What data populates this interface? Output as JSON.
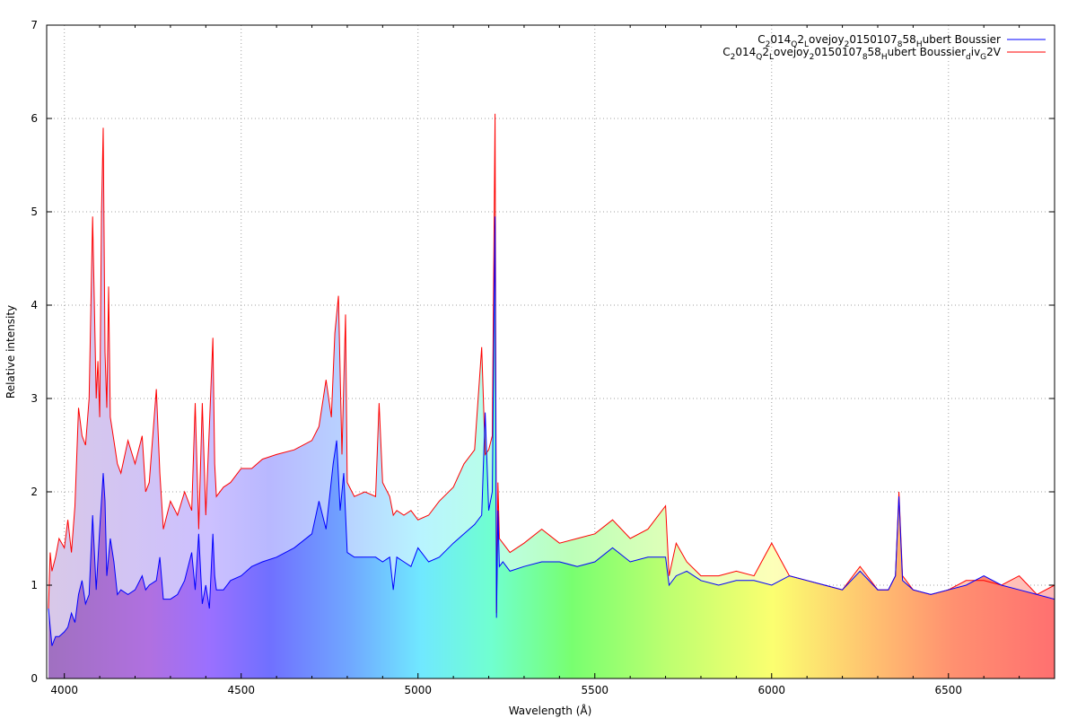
{
  "chart_data": {
    "type": "line",
    "title": "",
    "xlabel": "Wavelength (Å)",
    "ylabel": "Relative intensity",
    "xlim": [
      3950,
      6800
    ],
    "ylim": [
      0,
      7
    ],
    "x_ticks": [
      4000,
      4500,
      5000,
      5500,
      6000,
      6500
    ],
    "y_ticks": [
      0,
      1,
      2,
      3,
      4,
      5,
      6,
      7
    ],
    "grid": true,
    "legend_position": "top-right",
    "background": "spectrum-gradient",
    "series": [
      {
        "name": "C₂014Q₂Lovejoy₂0150107₈58Hubert Boussier",
        "legend_parts": [
          [
            "C",
            ""
          ],
          [
            "2",
            "sub"
          ],
          [
            "014",
            ""
          ],
          [
            "Q",
            "sub"
          ],
          [
            "2",
            ""
          ],
          [
            "L",
            "sub"
          ],
          [
            "ovejoy",
            ""
          ],
          [
            "2",
            "sub"
          ],
          [
            "0150107",
            ""
          ],
          [
            "8",
            "sub"
          ],
          [
            "58",
            ""
          ],
          [
            "H",
            "sub"
          ],
          [
            "ubert Boussier",
            ""
          ]
        ],
        "color": "#0000ff",
        "x": [
          3955,
          3965,
          3975,
          3985,
          4000,
          4010,
          4020,
          4030,
          4040,
          4050,
          4060,
          4070,
          4080,
          4090,
          4100,
          4110,
          4115,
          4120,
          4130,
          4140,
          4150,
          4160,
          4180,
          4200,
          4220,
          4230,
          4240,
          4260,
          4270,
          4280,
          4300,
          4320,
          4340,
          4360,
          4370,
          4380,
          4390,
          4400,
          4410,
          4420,
          4425,
          4430,
          4450,
          4470,
          4500,
          4530,
          4560,
          4600,
          4650,
          4700,
          4720,
          4740,
          4760,
          4770,
          4780,
          4790,
          4800,
          4820,
          4850,
          4880,
          4900,
          4920,
          4930,
          4940,
          4960,
          4980,
          5000,
          5030,
          5060,
          5100,
          5130,
          5160,
          5180,
          5190,
          5200,
          5210,
          5218,
          5222,
          5226,
          5230,
          5240,
          5260,
          5300,
          5350,
          5400,
          5450,
          5500,
          5550,
          5600,
          5650,
          5700,
          5710,
          5730,
          5760,
          5800,
          5850,
          5900,
          5950,
          6000,
          6050,
          6100,
          6150,
          6200,
          6250,
          6300,
          6330,
          6350,
          6360,
          6370,
          6400,
          6450,
          6500,
          6550,
          6600,
          6650,
          6700,
          6750,
          6800
        ],
        "y": [
          0.75,
          0.35,
          0.45,
          0.45,
          0.5,
          0.55,
          0.7,
          0.6,
          0.9,
          1.05,
          0.8,
          0.9,
          1.75,
          0.95,
          1.6,
          2.2,
          1.9,
          1.1,
          1.5,
          1.25,
          0.9,
          0.95,
          0.9,
          0.95,
          1.1,
          0.95,
          1.0,
          1.05,
          1.3,
          0.85,
          0.85,
          0.9,
          1.05,
          1.35,
          0.95,
          1.55,
          0.8,
          1.0,
          0.75,
          1.55,
          1.1,
          0.95,
          0.95,
          1.05,
          1.1,
          1.2,
          1.25,
          1.3,
          1.4,
          1.55,
          1.9,
          1.6,
          2.3,
          2.55,
          1.8,
          2.2,
          1.35,
          1.3,
          1.3,
          1.3,
          1.25,
          1.3,
          0.95,
          1.3,
          1.25,
          1.2,
          1.4,
          1.25,
          1.3,
          1.45,
          1.55,
          1.65,
          1.75,
          2.85,
          1.8,
          2.0,
          4.95,
          0.65,
          1.8,
          1.2,
          1.25,
          1.15,
          1.2,
          1.25,
          1.25,
          1.2,
          1.25,
          1.4,
          1.25,
          1.3,
          1.3,
          1.0,
          1.1,
          1.15,
          1.05,
          1.0,
          1.05,
          1.05,
          1.0,
          1.1,
          1.05,
          1.0,
          0.95,
          1.15,
          0.95,
          0.95,
          1.1,
          1.95,
          1.05,
          0.95,
          0.9,
          0.95,
          1.0,
          1.1,
          1.0,
          0.95,
          0.9,
          0.85
        ]
      },
      {
        "name": "C₂014Q₂Lovejoy₂0150107₈58Hubert Boussier_div_G2V",
        "legend_parts": [
          [
            "C",
            ""
          ],
          [
            "2",
            "sub"
          ],
          [
            "014",
            ""
          ],
          [
            "Q",
            "sub"
          ],
          [
            "2",
            ""
          ],
          [
            "L",
            "sub"
          ],
          [
            "ovejoy",
            ""
          ],
          [
            "2",
            "sub"
          ],
          [
            "0150107",
            ""
          ],
          [
            "8",
            "sub"
          ],
          [
            "58",
            ""
          ],
          [
            "H",
            "sub"
          ],
          [
            "ubert Boussier",
            ""
          ],
          [
            "d",
            "sub"
          ],
          [
            "iv",
            ""
          ],
          [
            "G",
            "sub"
          ],
          [
            "2V",
            ""
          ]
        ],
        "color": "#ff0000",
        "x": [
          3955,
          3960,
          3965,
          3975,
          3985,
          4000,
          4010,
          4020,
          4030,
          4040,
          4050,
          4060,
          4070,
          4080,
          4090,
          4095,
          4100,
          4105,
          4110,
          4115,
          4120,
          4125,
          4130,
          4140,
          4150,
          4160,
          4180,
          4200,
          4220,
          4230,
          4240,
          4260,
          4270,
          4280,
          4300,
          4320,
          4340,
          4360,
          4370,
          4380,
          4390,
          4400,
          4410,
          4420,
          4425,
          4430,
          4450,
          4470,
          4500,
          4530,
          4560,
          4600,
          4650,
          4700,
          4720,
          4740,
          4755,
          4765,
          4775,
          4785,
          4795,
          4800,
          4820,
          4850,
          4880,
          4890,
          4900,
          4920,
          4930,
          4940,
          4960,
          4980,
          5000,
          5030,
          5060,
          5100,
          5130,
          5160,
          5180,
          5190,
          5200,
          5210,
          5218,
          5222,
          5226,
          5230,
          5240,
          5260,
          5300,
          5350,
          5400,
          5450,
          5500,
          5550,
          5600,
          5650,
          5700,
          5710,
          5730,
          5760,
          5800,
          5850,
          5900,
          5950,
          6000,
          6050,
          6100,
          6150,
          6200,
          6250,
          6300,
          6330,
          6350,
          6360,
          6370,
          6400,
          6450,
          6500,
          6550,
          6600,
          6650,
          6700,
          6750,
          6800
        ],
        "y": [
          0.75,
          1.35,
          1.15,
          1.3,
          1.5,
          1.4,
          1.7,
          1.35,
          1.85,
          2.9,
          2.6,
          2.5,
          3.0,
          4.95,
          3.0,
          3.4,
          2.8,
          5.0,
          5.9,
          3.5,
          2.9,
          4.2,
          2.8,
          2.55,
          2.3,
          2.2,
          2.55,
          2.3,
          2.6,
          2.0,
          2.1,
          3.1,
          2.2,
          1.6,
          1.9,
          1.75,
          2.0,
          1.8,
          2.95,
          1.6,
          2.95,
          1.75,
          2.7,
          3.65,
          2.3,
          1.95,
          2.05,
          2.1,
          2.25,
          2.25,
          2.35,
          2.4,
          2.45,
          2.55,
          2.7,
          3.2,
          2.8,
          3.7,
          4.1,
          2.4,
          3.9,
          2.1,
          1.95,
          2.0,
          1.95,
          2.95,
          2.1,
          1.95,
          1.75,
          1.8,
          1.75,
          1.8,
          1.7,
          1.75,
          1.9,
          2.05,
          2.3,
          2.45,
          3.55,
          2.4,
          2.45,
          2.6,
          6.05,
          0.7,
          2.1,
          1.5,
          1.45,
          1.35,
          1.45,
          1.6,
          1.45,
          1.5,
          1.55,
          1.7,
          1.5,
          1.6,
          1.85,
          1.1,
          1.45,
          1.25,
          1.1,
          1.1,
          1.15,
          1.1,
          1.45,
          1.1,
          1.05,
          1.0,
          0.95,
          1.2,
          0.95,
          0.95,
          1.1,
          2.0,
          1.1,
          0.95,
          0.9,
          0.95,
          1.05,
          1.05,
          1.0,
          1.1,
          0.9,
          1.0
        ]
      }
    ]
  }
}
